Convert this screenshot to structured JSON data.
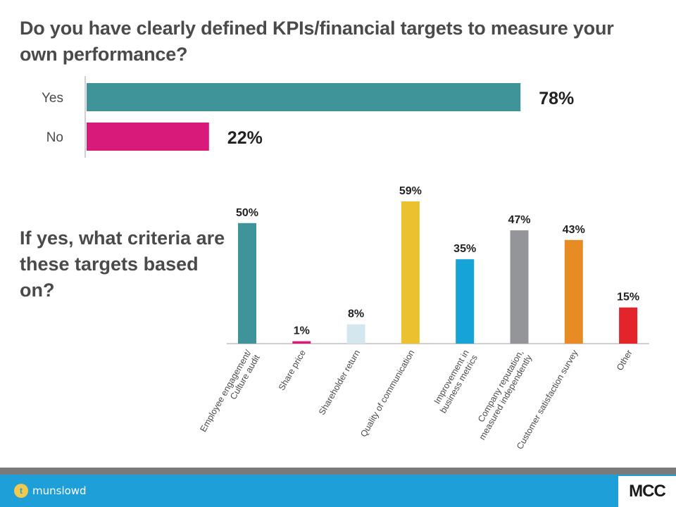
{
  "chart_data": [
    {
      "type": "bar",
      "orientation": "horizontal",
      "title": "Do you have clearly defined KPIs/financial targets to measure your own performance?",
      "categories": [
        "Yes",
        "No"
      ],
      "values": [
        78,
        22
      ],
      "value_labels": [
        "78%",
        "22%"
      ],
      "colors": [
        "#3e9499",
        "#d81b7a"
      ],
      "xlim": [
        0,
        100
      ],
      "grid": false
    },
    {
      "type": "bar",
      "orientation": "vertical",
      "title": "If yes, what criteria are these targets based on?",
      "categories": [
        "Employee engagement/ Culture audit",
        "Share price",
        "Shareholder return",
        "Quality of communication",
        "Improvement in business metrics",
        "Company reputation, measured independently",
        "Customer satisfaction survey",
        "Other"
      ],
      "category_lines": [
        [
          "Employee engagement/",
          "Culture audit"
        ],
        [
          "Share price"
        ],
        [
          "Shareholder return"
        ],
        [
          "Quality of communication"
        ],
        [
          "Improvement in",
          "business metrics"
        ],
        [
          "Company reputation,",
          "measured independently"
        ],
        [
          "Customer satisfaction survey"
        ],
        [
          "Other"
        ]
      ],
      "values": [
        50,
        1,
        8,
        59,
        35,
        47,
        43,
        15
      ],
      "value_labels": [
        "50%",
        "1%",
        "8%",
        "59%",
        "35%",
        "47%",
        "43%",
        "15%"
      ],
      "colors": [
        "#3e9499",
        "#d81b7a",
        "#d4e6ee",
        "#ecc130",
        "#16a4d8",
        "#939598",
        "#e88b24",
        "#e3242b"
      ],
      "ylim": [
        0,
        59
      ],
      "grid": false
    }
  ],
  "footer": {
    "twitter_icon": "twitter-bird-icon",
    "handle": "munslowd",
    "logo_text": "MCC",
    "accent": "#1f9fd8",
    "stripe": "#7a7a7a"
  }
}
